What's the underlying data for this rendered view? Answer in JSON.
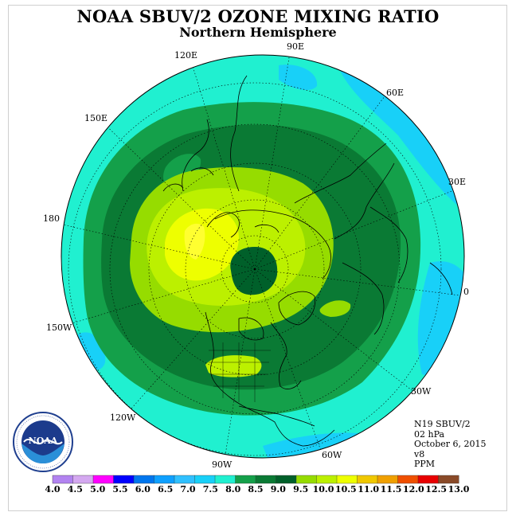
{
  "title": "NOAA SBUV/2 OZONE MIXING RATIO",
  "subtitle": "Northern Hemisphere",
  "longitude_labels": {
    "e90": "90E",
    "e120": "120E",
    "e60": "60E",
    "e150": "150E",
    "e30": "30E",
    "d180": "180",
    "d0": "0",
    "w150": "150W",
    "w30": "30W",
    "w120": "120W",
    "w60": "60W",
    "w90": "90W"
  },
  "info": {
    "satellite": "N19 SBUV/2",
    "pressure": "02 hPa",
    "date": "October 6, 2015",
    "version": "v8",
    "units": "PPM"
  },
  "logo": {
    "text": "NOAA",
    "icon": "noaa-logo-icon"
  },
  "colorbar": {
    "colors": [
      "#b283f0",
      "#d4a8f0",
      "#ff00ff",
      "#0000ff",
      "#0076ee",
      "#0ea0ff",
      "#30c0ff",
      "#18d0f8",
      "#20f0d0",
      "#14a04a",
      "#0a7a34",
      "#00602a",
      "#96dc00",
      "#bcf000",
      "#eeff00",
      "#f0c800",
      "#f0a000",
      "#f05000",
      "#e80000",
      "#8a4a28"
    ],
    "labels": [
      "4.0",
      "4.5",
      "5.0",
      "5.5",
      "6.0",
      "6.5",
      "7.0",
      "7.5",
      "8.0",
      "8.5",
      "9.0",
      "9.5",
      "10.0",
      "10.5",
      "11.0",
      "11.5",
      "12.0",
      "12.5",
      "13.0"
    ]
  }
}
